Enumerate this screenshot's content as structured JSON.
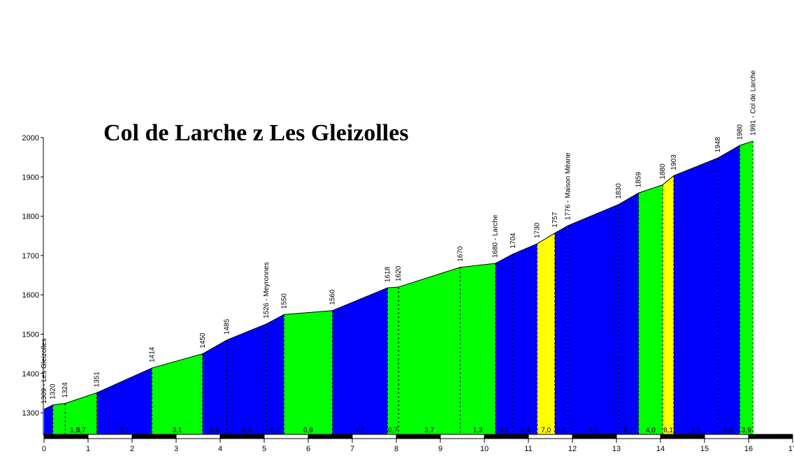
{
  "chart_data": {
    "type": "area",
    "title": "Col de Larche z Les Gleizolles",
    "xlim": [
      0,
      17
    ],
    "ylim": [
      1240,
      2000
    ],
    "yticks": [
      1300,
      1400,
      1500,
      1600,
      1700,
      1800,
      1900,
      2000
    ],
    "xticks": [
      0,
      1,
      2,
      3,
      4,
      5,
      6,
      7,
      8,
      9,
      10,
      11,
      12,
      13,
      14,
      15,
      16,
      17
    ],
    "xtick_labels": [
      "0",
      "1",
      "2",
      "3",
      "4",
      "5",
      "6",
      "7",
      "8",
      "9",
      "10",
      "11",
      "12",
      "13",
      "14",
      "15",
      "16",
      "17"
    ],
    "points": [
      {
        "x": 0,
        "y": 1309,
        "label": "1309 - Les Gleizolles"
      },
      {
        "x": 0.2,
        "y": 1320,
        "label": "1320"
      },
      {
        "x": 0.48,
        "y": 1324,
        "label": "1324"
      },
      {
        "x": 1.2,
        "y": 1351,
        "label": "1351"
      },
      {
        "x": 2.45,
        "y": 1414,
        "label": "1414"
      },
      {
        "x": 3.6,
        "y": 1450,
        "label": "1450"
      },
      {
        "x": 4.15,
        "y": 1485,
        "label": "1485"
      },
      {
        "x": 5.05,
        "y": 1526,
        "label": "1526 - Meyronnes"
      },
      {
        "x": 5.45,
        "y": 1550,
        "label": "1550"
      },
      {
        "x": 6.55,
        "y": 1560,
        "label": "1560"
      },
      {
        "x": 7.8,
        "y": 1618,
        "label": "1618"
      },
      {
        "x": 8.05,
        "y": 1620,
        "label": "1620"
      },
      {
        "x": 9.45,
        "y": 1670,
        "label": "1670"
      },
      {
        "x": 10.25,
        "y": 1680,
        "label": "1680 - Larche"
      },
      {
        "x": 10.65,
        "y": 1704,
        "label": "1704"
      },
      {
        "x": 11.2,
        "y": 1730,
        "label": "1730"
      },
      {
        "x": 11.6,
        "y": 1757,
        "label": "1757"
      },
      {
        "x": 11.9,
        "y": 1776,
        "label": "1776 - Maison Méane"
      },
      {
        "x": 13.05,
        "y": 1830,
        "label": "1830"
      },
      {
        "x": 13.5,
        "y": 1859,
        "label": "1859"
      },
      {
        "x": 14.05,
        "y": 1880,
        "label": "1880"
      },
      {
        "x": 14.3,
        "y": 1903,
        "label": "1903"
      },
      {
        "x": 15.3,
        "y": 1948,
        "label": "1948"
      },
      {
        "x": 15.8,
        "y": 1980,
        "label": "1980"
      },
      {
        "x": 16.1,
        "y": 1991,
        "label": "1991 - Col de Larche"
      }
    ],
    "segments": [
      {
        "from": 0,
        "to": 0.2,
        "grade": "",
        "color": "blue"
      },
      {
        "from": 0.2,
        "to": 1.2,
        "grade": "1,5",
        "color": "green"
      },
      {
        "from": 0.48,
        "to": 1.2,
        "grade": "3,7",
        "color": "green"
      },
      {
        "from": 1.2,
        "to": 2.45,
        "grade": "5,1",
        "color": "blue"
      },
      {
        "from": 2.45,
        "to": 3.6,
        "grade": "3,1",
        "color": "green"
      },
      {
        "from": 3.6,
        "to": 4.15,
        "grade": "6,0",
        "color": "blue"
      },
      {
        "from": 4.15,
        "to": 5.05,
        "grade": "4,3",
        "color": "blue"
      },
      {
        "from": 5.05,
        "to": 5.45,
        "grade": "6,2",
        "color": "blue"
      },
      {
        "from": 5.45,
        "to": 6.55,
        "grade": "0,9",
        "color": "green"
      },
      {
        "from": 6.55,
        "to": 7.8,
        "grade": "4,7",
        "color": "blue"
      },
      {
        "from": 7.8,
        "to": 8.05,
        "grade": "0,7",
        "color": "green"
      },
      {
        "from": 8.05,
        "to": 9.45,
        "grade": "3,7",
        "color": "green"
      },
      {
        "from": 9.45,
        "to": 10.25,
        "grade": "1,3",
        "color": "green"
      },
      {
        "from": 10.25,
        "to": 10.65,
        "grade": "6,1",
        "color": "blue"
      },
      {
        "from": 10.65,
        "to": 11.2,
        "grade": "4,4",
        "color": "blue"
      },
      {
        "from": 11.2,
        "to": 11.6,
        "grade": "7,0",
        "color": "yellow"
      },
      {
        "from": 11.6,
        "to": 11.9,
        "grade": "5,5",
        "color": "blue"
      },
      {
        "from": 11.9,
        "to": 13.05,
        "grade": "4,8",
        "color": "blue"
      },
      {
        "from": 13.05,
        "to": 13.5,
        "grade": "6,7",
        "color": "blue"
      },
      {
        "from": 13.5,
        "to": 14.05,
        "grade": "4,0",
        "color": "green"
      },
      {
        "from": 14.05,
        "to": 14.3,
        "grade": "8,1",
        "color": "yellow"
      },
      {
        "from": 14.3,
        "to": 15.3,
        "grade": "4,5",
        "color": "blue"
      },
      {
        "from": 15.3,
        "to": 15.8,
        "grade": "6,6",
        "color": "blue"
      },
      {
        "from": 15.8,
        "to": 16.1,
        "grade": "3,9",
        "color": "green"
      }
    ],
    "colors": {
      "blue": "#0000ff",
      "green": "#00ff00",
      "yellow": "#ffff00",
      "axis": "#000000",
      "text": "#000000"
    },
    "grid": false
  }
}
